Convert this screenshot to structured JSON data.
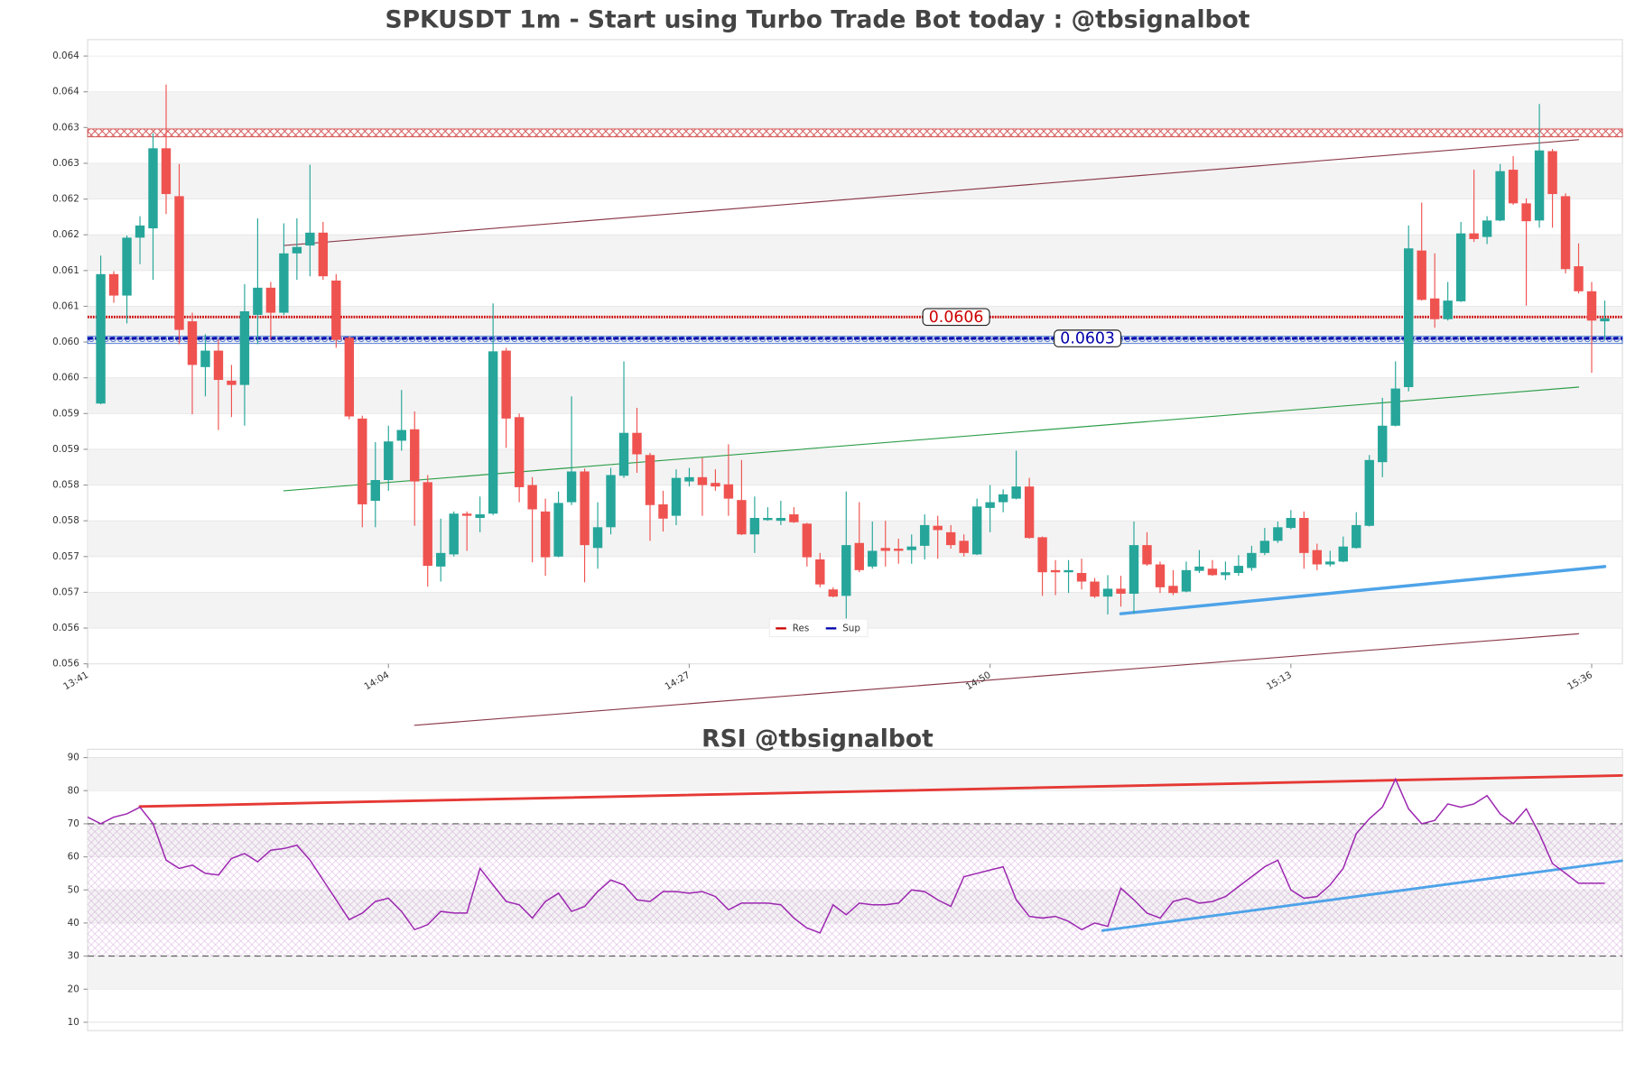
{
  "chart_data": [
    {
      "type": "candlestick",
      "title": "SPKUSDT 1m - Start using Turbo Trade Bot today : @tbsignalbot",
      "categories": [
        "13:41",
        null,
        null,
        null,
        null,
        null,
        null,
        null,
        null,
        null,
        null,
        null,
        null,
        null,
        null,
        null,
        null,
        null,
        null,
        null,
        null,
        null,
        null,
        "14:04",
        null,
        null,
        null,
        null,
        null,
        null,
        null,
        null,
        null,
        null,
        null,
        null,
        null,
        null,
        null,
        null,
        null,
        null,
        null,
        null,
        null,
        null,
        "14:27",
        null,
        null,
        null,
        null,
        null,
        null,
        null,
        null,
        null,
        null,
        null,
        null,
        null,
        null,
        null,
        null,
        null,
        null,
        null,
        null,
        null,
        null,
        "14:50",
        null,
        null,
        null,
        null,
        null,
        null,
        null,
        null,
        null,
        null,
        null,
        null,
        null,
        null,
        null,
        null,
        null,
        null,
        null,
        null,
        null,
        null,
        "15:13",
        null,
        null,
        null,
        null,
        null,
        null,
        null,
        null,
        null,
        null,
        null,
        null,
        null,
        null,
        null,
        null,
        null,
        null,
        null,
        null,
        null,
        null,
        "15:36",
        null
      ],
      "open": [
        null,
        0.05939,
        0.0612,
        0.0609,
        0.06171,
        0.06184,
        0.06296,
        0.06229,
        0.06054,
        0.0599,
        0.06013,
        0.05971,
        0.05965,
        0.06063,
        0.06101,
        0.06066,
        0.06149,
        0.0616,
        0.06178,
        0.06111,
        0.06031,
        0.05918,
        0.05803,
        0.05832,
        0.05887,
        0.05903,
        0.05829,
        0.05711,
        0.05728,
        0.05785,
        0.05779,
        0.05785,
        0.06013,
        0.0592,
        0.05825,
        0.05788,
        0.05725,
        0.05801,
        0.05844,
        0.05737,
        0.05766,
        0.05838,
        0.05898,
        0.05867,
        0.05798,
        0.05782,
        0.0583,
        0.05836,
        0.05828,
        0.05826,
        0.05804,
        0.05756,
        0.05776,
        0.05775,
        0.05784,
        0.05771,
        0.05721,
        0.05679,
        0.0567,
        0.05744,
        0.05711,
        0.05737,
        0.05736,
        0.05734,
        0.0574,
        0.05768,
        0.05759,
        0.05747,
        0.05728,
        0.05793,
        0.05801,
        0.05806,
        0.05823,
        0.05752,
        0.05706,
        0.05703,
        0.05702,
        0.0569,
        0.05669,
        0.0568,
        0.05673,
        0.05741,
        0.05714,
        0.05684,
        0.05676,
        0.05705,
        0.05708,
        0.05699,
        0.05702,
        0.05709,
        0.0573,
        0.05747,
        0.05765,
        0.05779,
        0.05734,
        0.05714,
        0.05718,
        0.05737,
        0.05768,
        0.05857,
        0.05908,
        0.05962,
        0.06153,
        0.06086,
        0.06057,
        0.06082,
        0.06177,
        0.06172,
        0.06195,
        0.06266,
        0.06219,
        0.06195,
        0.06292,
        0.06229,
        0.06131,
        0.06096,
        0.06054
      ],
      "high": [
        null,
        0.06146,
        0.06124,
        0.06174,
        0.06201,
        0.06317,
        0.06385,
        0.06274,
        0.06066,
        0.06036,
        0.06029,
        0.05993,
        0.06106,
        0.06198,
        0.06109,
        0.06191,
        0.06198,
        0.06273,
        0.06193,
        0.0612,
        0.06033,
        0.05922,
        0.05885,
        0.05908,
        0.05958,
        0.05928,
        0.05839,
        0.05778,
        0.05788,
        0.05788,
        0.05809,
        0.06079,
        0.06017,
        0.05925,
        0.05836,
        0.05806,
        0.05816,
        0.05949,
        0.05848,
        0.05801,
        0.05849,
        0.05998,
        0.05933,
        0.0587,
        0.05817,
        0.05847,
        0.05849,
        0.05863,
        0.05847,
        0.05882,
        0.0586,
        0.05809,
        0.05794,
        0.05803,
        0.05794,
        0.05772,
        0.0573,
        0.05682,
        0.05816,
        0.05801,
        0.05774,
        0.05775,
        0.0575,
        0.05756,
        0.05784,
        0.05782,
        0.05769,
        0.05756,
        0.05806,
        0.05825,
        0.05819,
        0.05873,
        0.05835,
        0.05753,
        0.0572,
        0.0572,
        0.05722,
        0.05695,
        0.05699,
        0.05698,
        0.05774,
        0.05759,
        0.05718,
        0.05706,
        0.05718,
        0.05734,
        0.0572,
        0.05718,
        0.05727,
        0.0574,
        0.05765,
        0.05774,
        0.0579,
        0.05788,
        0.05743,
        0.05733,
        0.05753,
        0.05787,
        0.05867,
        0.05947,
        0.05998,
        0.06188,
        0.0622,
        0.06149,
        0.06109,
        0.06193,
        0.06266,
        0.06201,
        0.06274,
        0.06285,
        0.06226,
        0.06358,
        0.06295,
        0.06233,
        0.06163,
        0.06109,
        0.06083
      ],
      "low": [
        null,
        0.05938,
        0.0608,
        0.06051,
        0.06134,
        0.06112,
        0.06204,
        0.06022,
        0.05924,
        0.05949,
        0.05902,
        0.0592,
        0.05908,
        0.06022,
        0.06029,
        0.06063,
        0.06112,
        0.06117,
        0.06112,
        0.06017,
        0.05917,
        0.05766,
        0.05766,
        0.05817,
        0.05873,
        0.05768,
        0.05683,
        0.0569,
        0.05725,
        0.05733,
        0.05759,
        0.05783,
        0.05877,
        0.05801,
        0.05717,
        0.05698,
        0.05724,
        0.05797,
        0.05689,
        0.05708,
        0.05756,
        0.05835,
        0.05842,
        0.05747,
        0.0576,
        0.05769,
        0.05823,
        0.05782,
        0.05817,
        0.05782,
        0.05755,
        0.0573,
        0.05775,
        0.05769,
        0.05772,
        0.05711,
        0.05682,
        0.05668,
        0.05635,
        0.05703,
        0.05708,
        0.05711,
        0.05715,
        0.05715,
        0.05721,
        0.05722,
        0.05736,
        0.05725,
        0.05727,
        0.05759,
        0.05787,
        0.05805,
        0.0575,
        0.0567,
        0.05671,
        0.05674,
        0.05679,
        0.05667,
        0.05644,
        0.05655,
        0.05645,
        0.05712,
        0.05674,
        0.05671,
        0.05675,
        0.05702,
        0.05698,
        0.05692,
        0.05698,
        0.05705,
        0.05727,
        0.05744,
        0.05763,
        0.05708,
        0.05706,
        0.05711,
        0.05717,
        0.05736,
        0.05767,
        0.05836,
        0.05907,
        0.05956,
        0.06083,
        0.06045,
        0.06055,
        0.06081,
        0.06165,
        0.06162,
        0.06194,
        0.06217,
        0.06076,
        0.06185,
        0.06185,
        0.06121,
        0.06093,
        0.05982,
        0.06028
      ],
      "close": [
        null,
        0.0612,
        0.0609,
        0.06171,
        0.06188,
        0.06296,
        0.06232,
        0.06042,
        0.05993,
        0.06013,
        0.05972,
        0.05965,
        0.06068,
        0.06101,
        0.06066,
        0.06149,
        0.06158,
        0.06178,
        0.06117,
        0.06028,
        0.05921,
        0.05798,
        0.05832,
        0.05886,
        0.05902,
        0.0583,
        0.05712,
        0.0573,
        0.05785,
        0.05782,
        0.05784,
        0.06012,
        0.05918,
        0.05822,
        0.05791,
        0.05724,
        0.058,
        0.05844,
        0.05741,
        0.05766,
        0.05839,
        0.05898,
        0.05868,
        0.05797,
        0.05778,
        0.05835,
        0.05836,
        0.05825,
        0.05823,
        0.05806,
        0.05756,
        0.05779,
        0.05779,
        0.05779,
        0.05773,
        0.05724,
        0.05686,
        0.05669,
        0.05741,
        0.05706,
        0.05733,
        0.05733,
        0.05733,
        0.05739,
        0.05769,
        0.05762,
        0.05741,
        0.0573,
        0.05795,
        0.05801,
        0.05812,
        0.05823,
        0.05751,
        0.05703,
        0.05703,
        0.05706,
        0.0569,
        0.05669,
        0.0568,
        0.05673,
        0.05741,
        0.05714,
        0.05682,
        0.05674,
        0.05706,
        0.05711,
        0.05699,
        0.05703,
        0.05712,
        0.0573,
        0.05747,
        0.05766,
        0.05779,
        0.0573,
        0.05714,
        0.05718,
        0.05739,
        0.05769,
        0.0586,
        0.05908,
        0.0596,
        0.06156,
        0.06084,
        0.06057,
        0.06083,
        0.06177,
        0.06169,
        0.06195,
        0.06264,
        0.06219,
        0.06194,
        0.06293,
        0.06232,
        0.06127,
        0.06096,
        0.06055,
        0.06058
      ],
      "up_color": "#26a69a",
      "down_color": "#ef5350",
      "ylim": [
        0.05575,
        0.06448
      ],
      "yticks": [
        {
          "value": 0.05575,
          "label": "0.056"
        },
        {
          "value": 0.05625,
          "label": "0.056"
        },
        {
          "value": 0.05675,
          "label": "0.057"
        },
        {
          "value": 0.05725,
          "label": "0.057"
        },
        {
          "value": 0.05775,
          "label": "0.058"
        },
        {
          "value": 0.05825,
          "label": "0.058"
        },
        {
          "value": 0.05875,
          "label": "0.059"
        },
        {
          "value": 0.05925,
          "label": "0.059"
        },
        {
          "value": 0.05975,
          "label": "0.060"
        },
        {
          "value": 0.06025,
          "label": "0.060"
        },
        {
          "value": 0.06075,
          "label": "0.061"
        },
        {
          "value": 0.06125,
          "label": "0.061"
        },
        {
          "value": 0.06175,
          "label": "0.062"
        },
        {
          "value": 0.06225,
          "label": "0.062"
        },
        {
          "value": 0.06275,
          "label": "0.063"
        },
        {
          "value": 0.06325,
          "label": "0.063"
        },
        {
          "value": 0.06375,
          "label": "0.064"
        },
        {
          "value": 0.06425,
          "label": "0.064"
        }
      ],
      "grid": true,
      "hlines": [
        {
          "name": "Res",
          "value": 0.0606,
          "color": "#cc0000"
        },
        {
          "name": "Sup",
          "value": 0.0603,
          "color": "#0000aa"
        }
      ],
      "zones": [
        {
          "range": [
            0.06312,
            0.06323
          ],
          "color": "#cc3333"
        },
        {
          "range": [
            0.06023,
            0.06033
          ],
          "color": "#3366cc"
        }
      ],
      "trendlines": [
        {
          "color": "#8b3a4a",
          "linewidth": 1,
          "points": [
            [
              15,
              0.0616
            ],
            [
              114,
              0.06308
            ]
          ]
        },
        {
          "color": "#2e9e4a",
          "linewidth": 1,
          "points": [
            [
              15,
              0.05817
            ],
            [
              114,
              0.05962
            ]
          ]
        },
        {
          "color": "#8b3a4a",
          "linewidth": 1,
          "points": [
            [
              25,
              0.05489
            ],
            [
              114,
              0.05617
            ]
          ]
        },
        {
          "color": "#4ea3e8",
          "linewidth": 3,
          "points": [
            [
              79,
              0.05645
            ],
            [
              116,
              0.05711
            ]
          ]
        }
      ],
      "legend": "lower center"
    },
    {
      "type": "line",
      "title": "RSI @tbsignalbot",
      "values": [
        72,
        70,
        72,
        73,
        75,
        70,
        59,
        56.5,
        57.5,
        55,
        54.5,
        59.5,
        61,
        58.5,
        62,
        62.5,
        63.5,
        59,
        53,
        47,
        41,
        43,
        46.5,
        47.5,
        43.5,
        38,
        39.5,
        43.5,
        43,
        43,
        56.5,
        51.5,
        46.5,
        45.5,
        41.5,
        46.5,
        49,
        43.5,
        45,
        49.5,
        53,
        51.5,
        47,
        46.5,
        49.5,
        49.5,
        49,
        49.5,
        48,
        44,
        46,
        46,
        46,
        45.5,
        41.5,
        38.5,
        37,
        45.5,
        42.5,
        46,
        45.5,
        45.5,
        46,
        50,
        49.5,
        47,
        45,
        54,
        55,
        56,
        57,
        47,
        42,
        41.5,
        42,
        40.5,
        38,
        40,
        39,
        50.5,
        47,
        43,
        41.5,
        46.5,
        47.5,
        46,
        46.5,
        48,
        51,
        54,
        57,
        59,
        50,
        47.5,
        48,
        51.5,
        56.5,
        67,
        71.5,
        75,
        83.5,
        74.5,
        70,
        71,
        76,
        75,
        76,
        78.5,
        73,
        70,
        74.5,
        67,
        58,
        55,
        52,
        52,
        52
      ],
      "color": "#9c27b0",
      "ylim": [
        10,
        90
      ],
      "yticks": [
        10,
        20,
        30,
        40,
        50,
        60,
        70,
        80,
        90
      ],
      "grid": true,
      "levels": [
        70,
        30
      ],
      "band": [
        30,
        70
      ],
      "trendlines": [
        {
          "color": "#e53935",
          "linewidth": 2.5,
          "points": [
            [
              4,
              75.2
            ],
            [
              117.3,
              84.6
            ]
          ]
        },
        {
          "color": "#4ea3e8",
          "linewidth": 2.5,
          "points": [
            [
              77.6,
              37.7
            ],
            [
              117.3,
              58.8
            ]
          ]
        }
      ]
    }
  ]
}
